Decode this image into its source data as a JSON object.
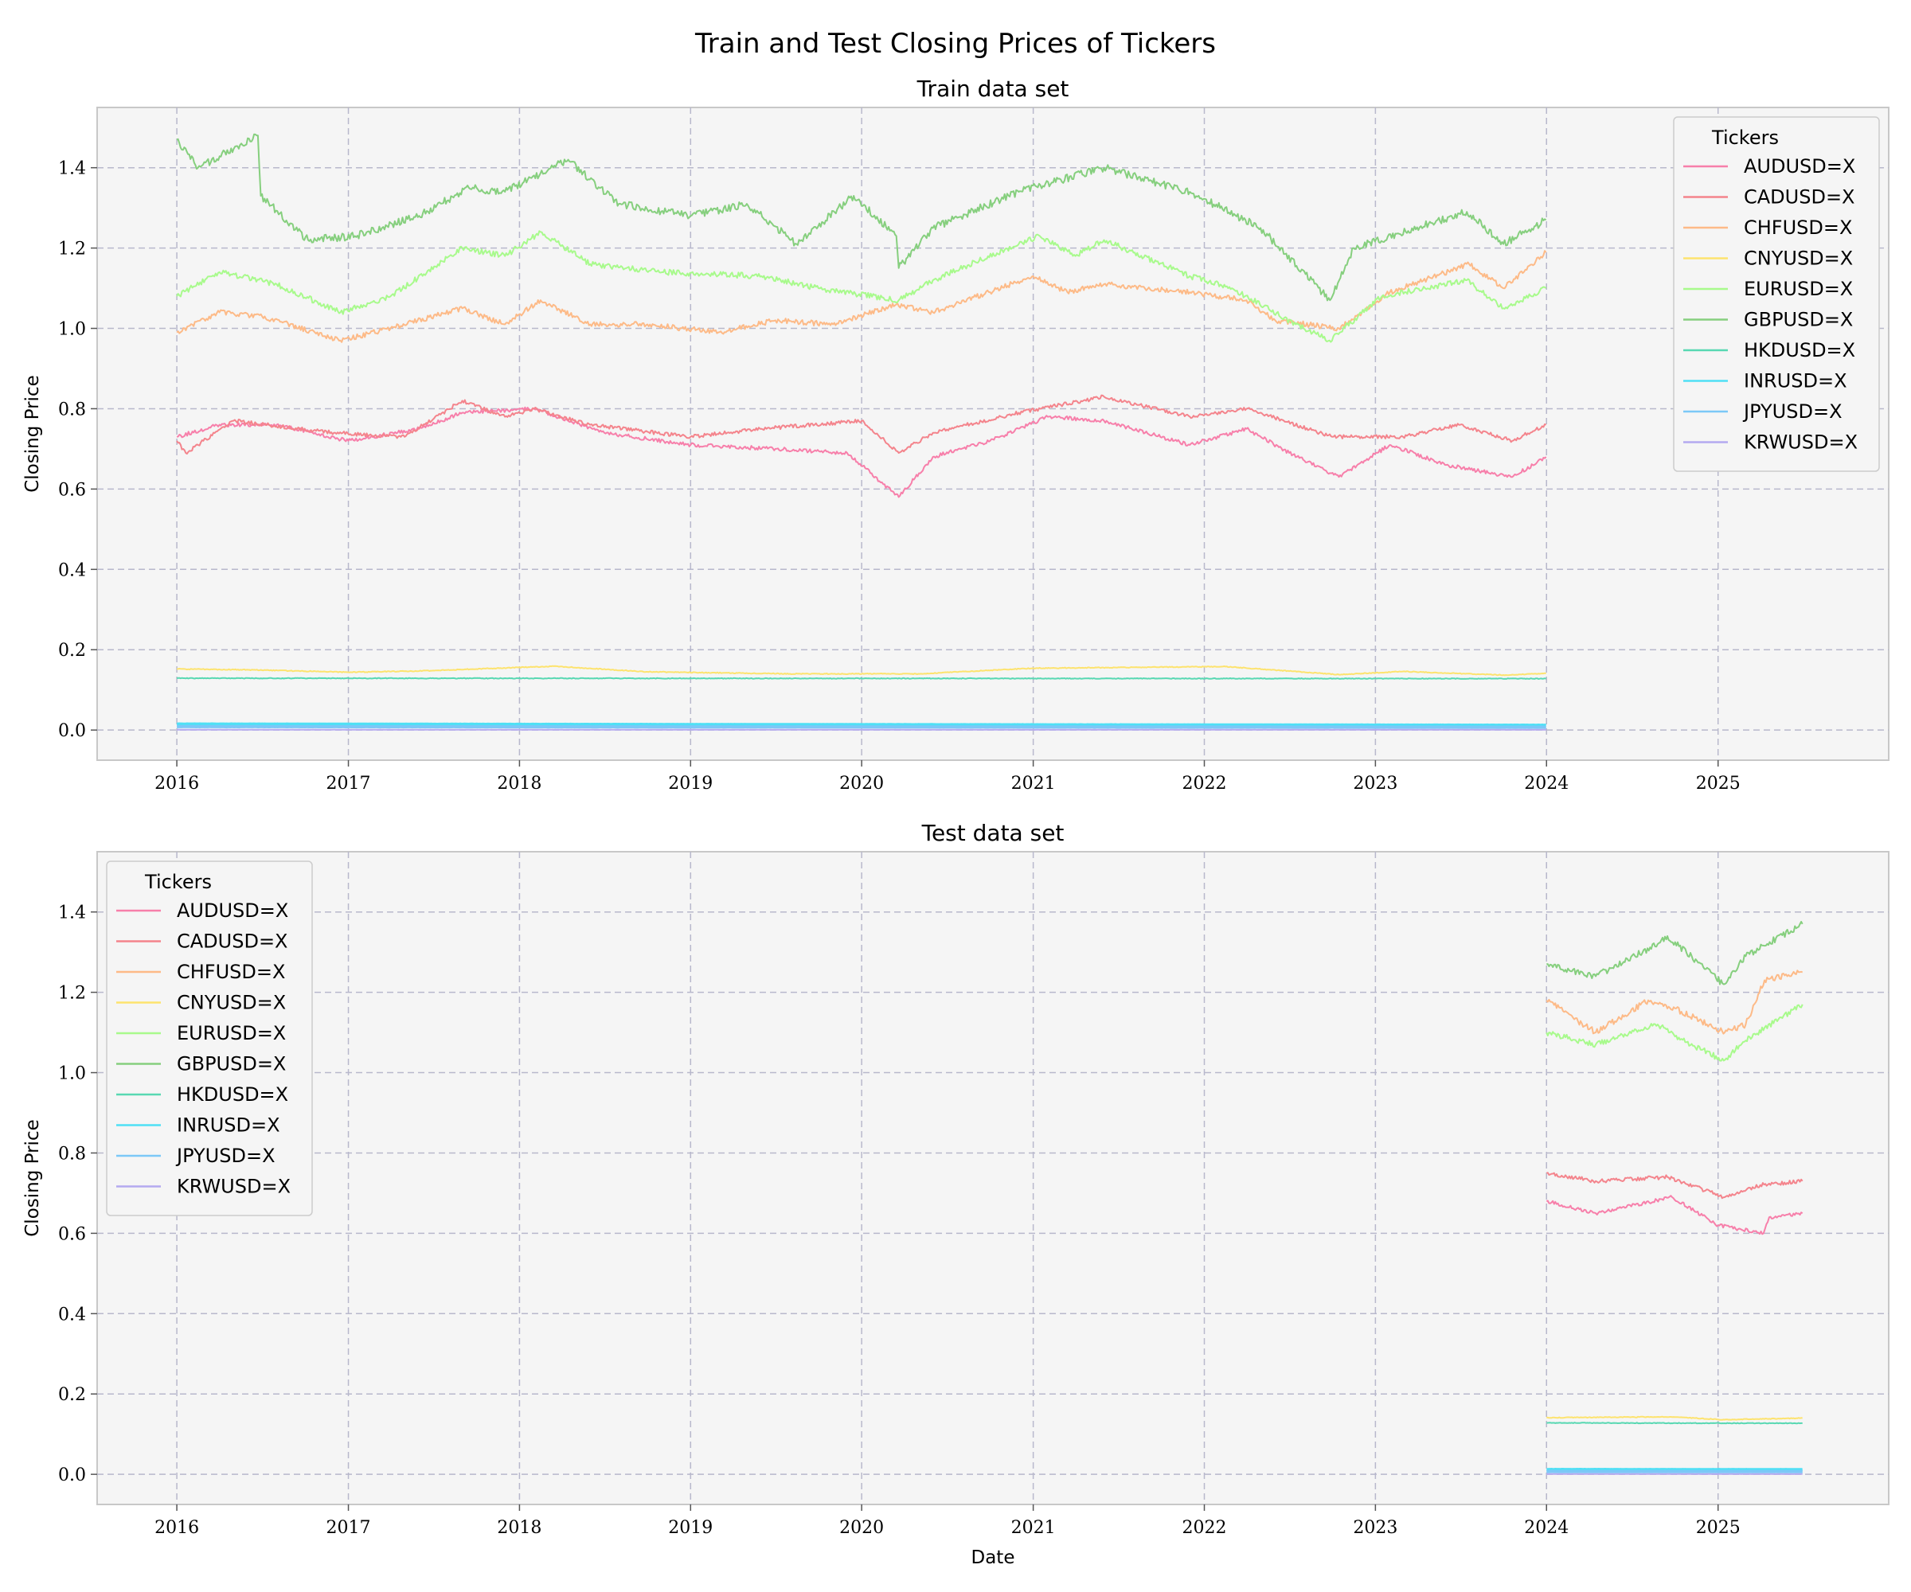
{
  "figure_title": "Train and Test Closing Prices of Tickers",
  "colors": {
    "AUDUSD=X": "#f77faa",
    "CADUSD=X": "#f4848c",
    "CHFUSD=X": "#fdba87",
    "CNYUSD=X": "#fde36e",
    "EURUSD=X": "#a8fa8c",
    "GBPUSD=X": "#86cf7e",
    "HKDUSD=X": "#58d8b2",
    "INRUSD=X": "#4fe0f5",
    "JPYUSD=X": "#7cc8f7",
    "KRWUSD=X": "#b4aaf0"
  },
  "chart_data": [
    {
      "type": "line",
      "title": "Train data set",
      "xlabel": "",
      "ylabel": "Closing Price",
      "x_ticks": [
        "2016",
        "2017",
        "2018",
        "2019",
        "2020",
        "2021",
        "2022",
        "2023",
        "2024",
        "2025"
      ],
      "y_ticks": [
        "0.0",
        "0.2",
        "0.4",
        "0.6",
        "0.8",
        "1.0",
        "1.2",
        "1.4"
      ],
      "xlim": [
        "2015-07-15",
        "2025-12-31"
      ],
      "ylim": [
        -0.075,
        1.55
      ],
      "grid": true,
      "legend": {
        "title": "Tickers",
        "placement": "upper right"
      },
      "series": [
        {
          "name": "AUDUSD=X",
          "x": [
            "2016-01-01",
            "2016-04-01",
            "2016-08-01",
            "2017-01-01",
            "2017-06-01",
            "2017-09-01",
            "2018-02-01",
            "2018-07-01",
            "2019-01-01",
            "2019-07-01",
            "2019-12-01",
            "2020-03-20",
            "2020-06-01",
            "2020-10-01",
            "2021-02-01",
            "2021-06-01",
            "2021-12-01",
            "2022-04-01",
            "2022-07-01",
            "2022-10-15",
            "2023-02-01",
            "2023-06-01",
            "2023-10-20",
            "2023-12-31"
          ],
          "y": [
            0.73,
            0.76,
            0.76,
            0.72,
            0.75,
            0.79,
            0.8,
            0.74,
            0.71,
            0.7,
            0.69,
            0.58,
            0.68,
            0.72,
            0.78,
            0.77,
            0.71,
            0.75,
            0.69,
            0.63,
            0.71,
            0.66,
            0.63,
            0.68
          ]
        },
        {
          "name": "CADUSD=X",
          "x": [
            "2016-01-01",
            "2016-01-20",
            "2016-05-01",
            "2016-12-01",
            "2017-05-01",
            "2017-09-01",
            "2017-12-01",
            "2018-02-01",
            "2018-06-01",
            "2019-01-01",
            "2019-06-01",
            "2020-01-01",
            "2020-03-20",
            "2020-06-01",
            "2020-12-01",
            "2021-06-01",
            "2021-12-01",
            "2022-04-01",
            "2022-10-01",
            "2023-03-01",
            "2023-07-01",
            "2023-10-20",
            "2023-12-31"
          ],
          "y": [
            0.72,
            0.69,
            0.77,
            0.74,
            0.73,
            0.82,
            0.78,
            0.8,
            0.76,
            0.73,
            0.75,
            0.77,
            0.69,
            0.74,
            0.79,
            0.83,
            0.78,
            0.8,
            0.73,
            0.73,
            0.76,
            0.72,
            0.76
          ]
        },
        {
          "name": "CHFUSD=X",
          "x": [
            "2016-01-01",
            "2016-04-01",
            "2016-07-01",
            "2016-12-15",
            "2017-04-01",
            "2017-09-01",
            "2017-12-01",
            "2018-02-15",
            "2018-06-01",
            "2018-10-01",
            "2019-03-01",
            "2019-07-01",
            "2019-11-01",
            "2020-03-15",
            "2020-06-01",
            "2021-01-01",
            "2021-03-15",
            "2021-06-01",
            "2021-12-01",
            "2022-04-01",
            "2022-06-01",
            "2022-10-15",
            "2023-02-01",
            "2023-07-20",
            "2023-10-01",
            "2023-12-31"
          ],
          "y": [
            0.99,
            1.04,
            1.03,
            0.97,
            1.0,
            1.05,
            1.01,
            1.07,
            1.01,
            1.01,
            0.99,
            1.02,
            1.01,
            1.06,
            1.04,
            1.13,
            1.09,
            1.11,
            1.09,
            1.07,
            1.02,
            1.0,
            1.09,
            1.16,
            1.1,
            1.19
          ]
        },
        {
          "name": "CNYUSD=X",
          "x": [
            "2016-01-01",
            "2016-06-01",
            "2017-01-01",
            "2017-06-01",
            "2018-03-15",
            "2018-10-01",
            "2019-08-01",
            "2020-05-01",
            "2021-01-01",
            "2022-02-15",
            "2022-10-15",
            "2023-03-01",
            "2023-10-01",
            "2023-12-31"
          ],
          "y": [
            0.152,
            0.15,
            0.144,
            0.147,
            0.159,
            0.145,
            0.14,
            0.14,
            0.154,
            0.158,
            0.138,
            0.146,
            0.137,
            0.141
          ]
        },
        {
          "name": "EURUSD=X",
          "x": [
            "2016-01-01",
            "2016-04-01",
            "2016-08-01",
            "2016-12-15",
            "2017-04-01",
            "2017-09-01",
            "2017-12-01",
            "2018-02-15",
            "2018-06-01",
            "2018-11-01",
            "2019-06-01",
            "2019-10-01",
            "2020-03-20",
            "2020-06-01",
            "2020-12-01",
            "2021-01-15",
            "2021-04-01",
            "2021-06-01",
            "2021-12-01",
            "2022-03-01",
            "2022-07-15",
            "2022-09-25",
            "2023-01-15",
            "2023-07-15",
            "2023-10-01",
            "2023-12-31"
          ],
          "y": [
            1.08,
            1.14,
            1.11,
            1.04,
            1.08,
            1.2,
            1.18,
            1.24,
            1.16,
            1.14,
            1.13,
            1.1,
            1.07,
            1.12,
            1.21,
            1.23,
            1.18,
            1.22,
            1.13,
            1.1,
            1.01,
            0.97,
            1.08,
            1.12,
            1.05,
            1.1
          ]
        },
        {
          "name": "GBPUSD=X",
          "x": [
            "2016-01-01",
            "2016-02-15",
            "2016-06-22",
            "2016-06-28",
            "2016-10-07",
            "2017-01-15",
            "2017-06-01",
            "2017-09-15",
            "2017-12-01",
            "2018-04-15",
            "2018-08-01",
            "2019-01-01",
            "2019-05-01",
            "2019-08-15",
            "2019-12-15",
            "2020-03-15",
            "2020-03-20",
            "2020-06-01",
            "2020-12-01",
            "2021-06-01",
            "2021-12-01",
            "2022-05-01",
            "2022-09-26",
            "2022-11-15",
            "2023-07-15",
            "2023-10-01",
            "2023-12-31"
          ],
          "y": [
            1.47,
            1.4,
            1.48,
            1.33,
            1.22,
            1.23,
            1.28,
            1.35,
            1.34,
            1.42,
            1.31,
            1.28,
            1.31,
            1.21,
            1.33,
            1.23,
            1.15,
            1.25,
            1.34,
            1.4,
            1.34,
            1.25,
            1.07,
            1.2,
            1.29,
            1.21,
            1.27
          ]
        },
        {
          "name": "HKDUSD=X",
          "x": [
            "2016-01-01",
            "2023-12-31"
          ],
          "y": [
            0.129,
            0.128
          ]
        },
        {
          "name": "INRUSD=X",
          "x": [
            "2016-01-01",
            "2023-12-31"
          ],
          "y": [
            0.015,
            0.012
          ]
        },
        {
          "name": "JPYUSD=X",
          "x": [
            "2016-01-01",
            "2023-12-31"
          ],
          "y": [
            0.0085,
            0.007
          ]
        },
        {
          "name": "KRWUSD=X",
          "x": [
            "2016-01-01",
            "2023-12-31"
          ],
          "y": [
            0.00084,
            0.00076
          ]
        }
      ]
    },
    {
      "type": "line",
      "title": "Test data set",
      "xlabel": "Date",
      "ylabel": "Closing Price",
      "x_ticks": [
        "2016",
        "2017",
        "2018",
        "2019",
        "2020",
        "2021",
        "2022",
        "2023",
        "2024",
        "2025"
      ],
      "y_ticks": [
        "0.0",
        "0.2",
        "0.4",
        "0.6",
        "0.8",
        "1.0",
        "1.2",
        "1.4"
      ],
      "xlim": [
        "2015-07-15",
        "2025-12-31"
      ],
      "ylim": [
        -0.075,
        1.55
      ],
      "grid": true,
      "legend": {
        "title": "Tickers",
        "placement": "upper left"
      },
      "series": [
        {
          "name": "AUDUSD=X",
          "x": [
            "2024-01-01",
            "2024-04-15",
            "2024-09-25",
            "2025-01-01",
            "2025-04-08",
            "2025-04-20",
            "2025-06-30"
          ],
          "y": [
            0.68,
            0.65,
            0.69,
            0.62,
            0.6,
            0.64,
            0.65
          ]
        },
        {
          "name": "CADUSD=X",
          "x": [
            "2024-01-01",
            "2024-04-15",
            "2024-09-15",
            "2025-01-15",
            "2025-04-01",
            "2025-06-30"
          ],
          "y": [
            0.75,
            0.73,
            0.74,
            0.69,
            0.72,
            0.73
          ]
        },
        {
          "name": "CHFUSD=X",
          "x": [
            "2024-01-01",
            "2024-04-15",
            "2024-08-05",
            "2024-10-01",
            "2025-01-15",
            "2025-03-01",
            "2025-04-10",
            "2025-06-30"
          ],
          "y": [
            1.18,
            1.1,
            1.18,
            1.16,
            1.1,
            1.12,
            1.23,
            1.25
          ]
        },
        {
          "name": "CNYUSD=X",
          "x": [
            "2024-01-01",
            "2024-09-20",
            "2025-01-15",
            "2025-06-30"
          ],
          "y": [
            0.141,
            0.143,
            0.136,
            0.14
          ]
        },
        {
          "name": "EURUSD=X",
          "x": [
            "2024-01-01",
            "2024-04-15",
            "2024-08-25",
            "2024-10-01",
            "2025-01-13",
            "2025-03-01",
            "2025-06-30"
          ],
          "y": [
            1.1,
            1.07,
            1.12,
            1.09,
            1.03,
            1.08,
            1.17
          ]
        },
        {
          "name": "GBPUSD=X",
          "x": [
            "2024-01-01",
            "2024-04-15",
            "2024-08-25",
            "2024-09-15",
            "2025-01-13",
            "2025-03-01",
            "2025-06-30"
          ],
          "y": [
            1.27,
            1.24,
            1.32,
            1.34,
            1.22,
            1.29,
            1.37
          ]
        },
        {
          "name": "HKDUSD=X",
          "x": [
            "2024-01-01",
            "2025-06-30"
          ],
          "y": [
            0.128,
            0.127
          ]
        },
        {
          "name": "INRUSD=X",
          "x": [
            "2024-01-01",
            "2025-06-30"
          ],
          "y": [
            0.012,
            0.0117
          ]
        },
        {
          "name": "JPYUSD=X",
          "x": [
            "2024-01-01",
            "2025-06-30"
          ],
          "y": [
            0.007,
            0.0068
          ]
        },
        {
          "name": "KRWUSD=X",
          "x": [
            "2024-01-01",
            "2025-06-30"
          ],
          "y": [
            0.00075,
            0.0007
          ]
        }
      ]
    }
  ]
}
